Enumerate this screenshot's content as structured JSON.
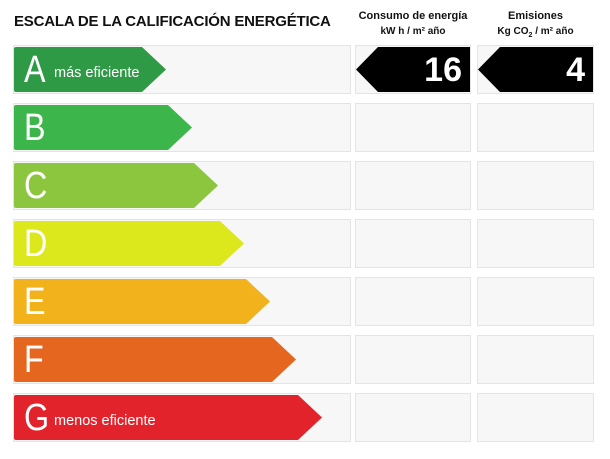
{
  "title": "ESCALA DE LA CALIFICACIÓN ENERGÉTICA",
  "columns": {
    "consumo": {
      "line1": "Consumo de energía",
      "line2": "kW h / m² año"
    },
    "emisiones": {
      "line1": "Emisiones",
      "line2_pre": "Kg CO",
      "line2_sub": "2",
      "line2_post": " / m² año"
    }
  },
  "rating": {
    "current_class": "A",
    "consumo_value": "16",
    "emisiones_value": "4"
  },
  "classes": [
    {
      "letter": "A",
      "label": "más eficiente",
      "color": "#2f9a46"
    },
    {
      "letter": "B",
      "label": "",
      "color": "#3cb54a"
    },
    {
      "letter": "C",
      "label": "",
      "color": "#8cc63f"
    },
    {
      "letter": "D",
      "label": "",
      "color": "#dde81c"
    },
    {
      "letter": "E",
      "label": "",
      "color": "#f1b21b"
    },
    {
      "letter": "F",
      "label": "",
      "color": "#e4661f"
    },
    {
      "letter": "G",
      "label": "menos eficiente",
      "color": "#e3232b"
    }
  ]
}
